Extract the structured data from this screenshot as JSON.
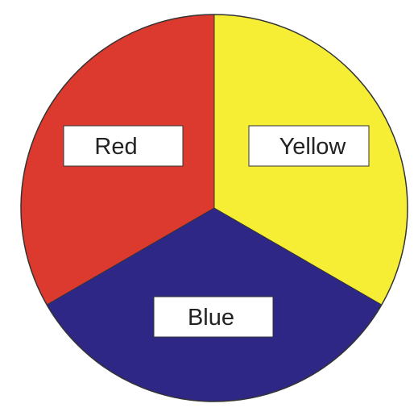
{
  "segments": [
    {
      "id": "red",
      "label": "Red",
      "color": "#DC3A2E"
    },
    {
      "id": "yellow",
      "label": "Yellow",
      "color": "#F6EE35"
    },
    {
      "id": "blue",
      "label": "Blue",
      "color": "#2E2786"
    }
  ],
  "outline_color": "#333333",
  "label_box_fill": "#ffffff"
}
